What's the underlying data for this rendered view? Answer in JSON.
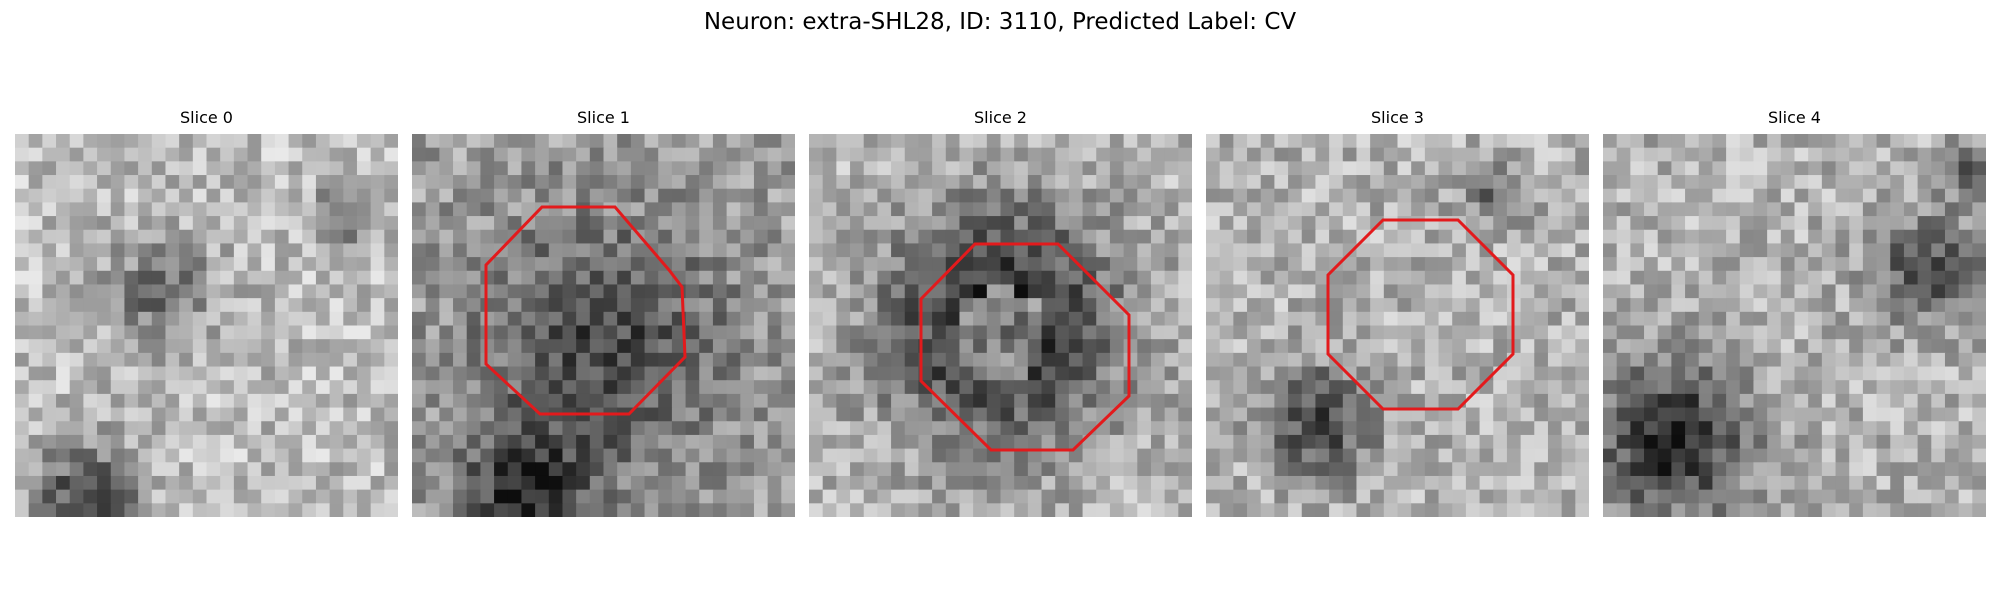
{
  "figure": {
    "title": "Neuron: extra-SHL28, ID: 3110, Predicted Label: CV"
  },
  "slices": [
    {
      "title": "Slice 0",
      "has_roi": false,
      "brightness": 0.74,
      "dark_spots": [
        [
          0.38,
          0.42,
          0.1,
          0.3
        ],
        [
          0.18,
          0.95,
          0.1,
          0.45
        ],
        [
          0.88,
          0.2,
          0.06,
          0.35
        ]
      ]
    },
    {
      "title": "Slice 1",
      "has_roi": true,
      "brightness": 0.62,
      "dark_spots": [
        [
          0.5,
          0.55,
          0.22,
          0.35
        ],
        [
          0.3,
          0.95,
          0.12,
          0.45
        ]
      ]
    },
    {
      "title": "Slice 2",
      "has_roi": true,
      "brightness": 0.72,
      "dark_spots": [
        [
          0.5,
          0.5,
          0.22,
          0.6
        ]
      ],
      "ring": true
    },
    {
      "title": "Slice 3",
      "has_roi": true,
      "brightness": 0.7,
      "dark_spots": [
        [
          0.3,
          0.75,
          0.1,
          0.45
        ],
        [
          0.75,
          0.15,
          0.06,
          0.3
        ]
      ]
    },
    {
      "title": "Slice 4",
      "has_roi": false,
      "brightness": 0.7,
      "dark_spots": [
        [
          0.18,
          0.8,
          0.14,
          0.55
        ],
        [
          0.85,
          0.35,
          0.1,
          0.4
        ],
        [
          0.96,
          0.1,
          0.05,
          0.4
        ]
      ]
    }
  ],
  "roi_color": "#e31a1c",
  "grid_size": 28
}
